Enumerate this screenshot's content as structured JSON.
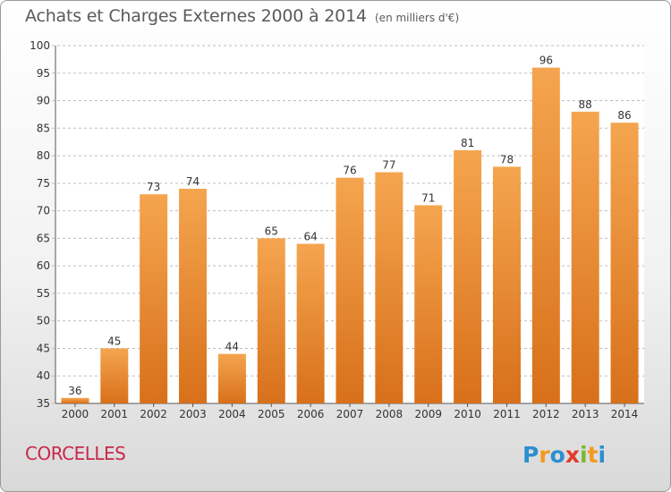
{
  "header": {
    "title": "Achats et Charges Externes 2000 à 2014",
    "subtitle": "(en milliers d'€)"
  },
  "footer": {
    "city": "CORCELLES",
    "logo_text": "Proxiti"
  },
  "colors": {
    "bar_light": "#f5a54f",
    "bar_dark": "#d8701a",
    "grid": "#bdbdbd",
    "city": "#c8284a"
  },
  "chart_data": {
    "type": "bar",
    "title": "Achats et Charges Externes 2000 à 2014",
    "subtitle": "(en milliers d'€)",
    "categories": [
      "2000",
      "2001",
      "2002",
      "2003",
      "2004",
      "2005",
      "2006",
      "2007",
      "2008",
      "2009",
      "2010",
      "2011",
      "2012",
      "2013",
      "2014"
    ],
    "values": [
      36,
      45,
      73,
      74,
      44,
      65,
      64,
      76,
      77,
      71,
      81,
      78,
      96,
      88,
      86
    ],
    "ylim": [
      35,
      100
    ],
    "yticks": [
      35,
      40,
      45,
      50,
      55,
      60,
      65,
      70,
      75,
      80,
      85,
      90,
      95,
      100
    ],
    "grid": true,
    "xlabel": "",
    "ylabel": ""
  }
}
